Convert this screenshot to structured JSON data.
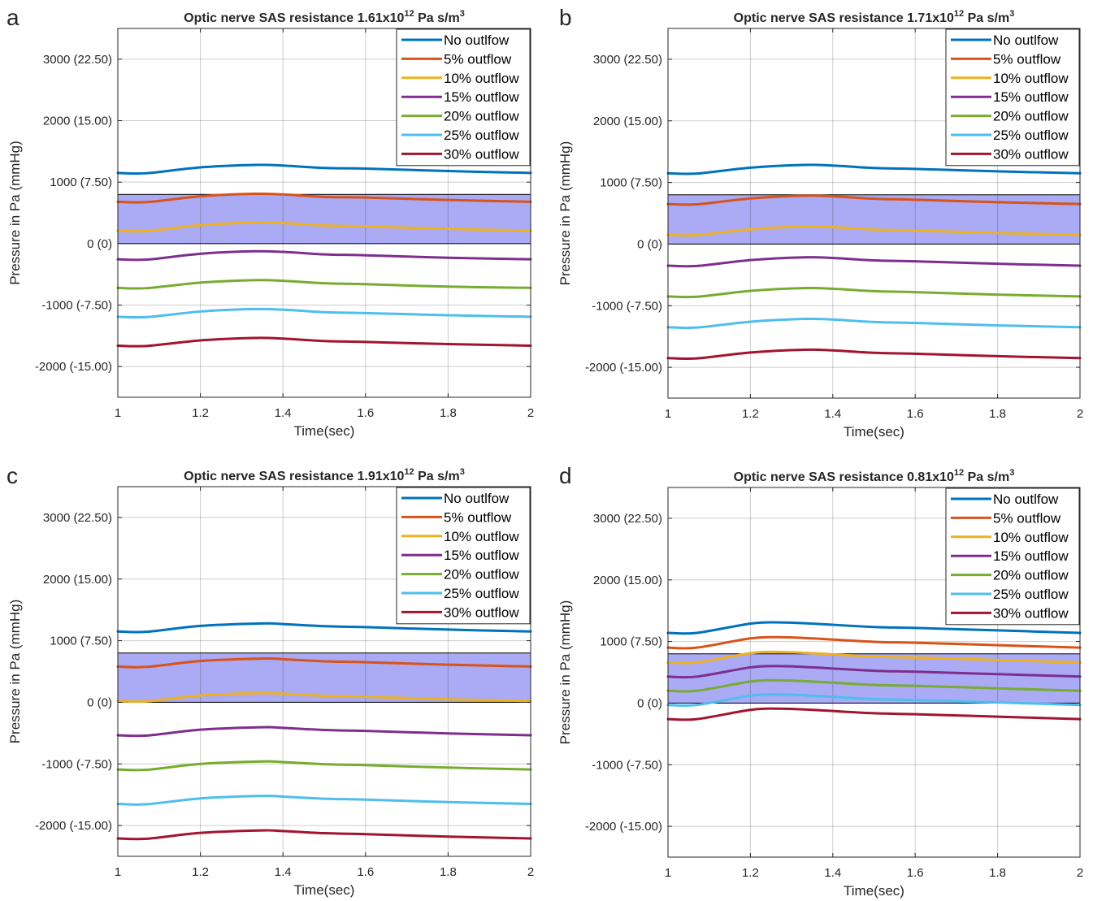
{
  "chart_data": [
    {
      "type": "line",
      "panel_label": "a",
      "title": {
        "prefix": "Optic nerve SAS resistance 1.61x10",
        "exponent": "12",
        "unit": " Pa s/m",
        "unit_exponent": "3"
      },
      "xlabel": "Time(sec)",
      "ylabel": "Pressure in Pa (mmHg)",
      "xlim": [
        1,
        2
      ],
      "ylim": [
        -2500,
        3500
      ],
      "xticks": [
        1,
        1.2,
        1.4,
        1.6,
        1.8,
        2
      ],
      "xtick_labels": [
        "1",
        "1.2",
        "1.4",
        "1.6",
        "1.8",
        "2"
      ],
      "yticks": [
        -2000,
        -1000,
        0,
        1000,
        2000,
        3000
      ],
      "ytick_labels": [
        "-2000 (-15.00)",
        "-1000 (-7.50)",
        "0 (0)",
        "1000 (7.50)",
        "2000 (15.00)",
        "3000 (22.50)"
      ],
      "grid": true,
      "legend_position": "top-right",
      "shaded_band": {
        "y_from": 0,
        "y_to": 800,
        "color": "#aaaaf5"
      },
      "series": [
        {
          "name": "No outlfow",
          "color": "#0072bd",
          "x": [
            1,
            1.07,
            1.2,
            1.33,
            1.4,
            1.5,
            1.6,
            1.8,
            2
          ],
          "values": [
            1150,
            1145,
            1240,
            1280,
            1270,
            1230,
            1220,
            1180,
            1150
          ]
        },
        {
          "name": "5% outflow",
          "color": "#d95319",
          "x": [
            1,
            1.07,
            1.2,
            1.33,
            1.4,
            1.5,
            1.6,
            1.8,
            2
          ],
          "values": [
            680,
            675,
            770,
            810,
            800,
            760,
            750,
            710,
            680
          ]
        },
        {
          "name": "10% outflow",
          "color": "#edb120",
          "x": [
            1,
            1.07,
            1.2,
            1.33,
            1.4,
            1.5,
            1.6,
            1.8,
            2
          ],
          "values": [
            210,
            205,
            300,
            345,
            335,
            295,
            280,
            240,
            210
          ]
        },
        {
          "name": "15% outflow",
          "color": "#7e2f8e",
          "x": [
            1,
            1.07,
            1.2,
            1.33,
            1.4,
            1.5,
            1.6,
            1.8,
            2
          ],
          "values": [
            -255,
            -260,
            -165,
            -125,
            -135,
            -175,
            -190,
            -230,
            -255
          ]
        },
        {
          "name": "20% outflow",
          "color": "#77ac30",
          "x": [
            1,
            1.07,
            1.2,
            1.33,
            1.4,
            1.5,
            1.6,
            1.8,
            2
          ],
          "values": [
            -720,
            -725,
            -635,
            -595,
            -605,
            -645,
            -660,
            -700,
            -720
          ]
        },
        {
          "name": "25% outflow",
          "color": "#4dbeee",
          "x": [
            1,
            1.07,
            1.2,
            1.33,
            1.4,
            1.5,
            1.6,
            1.8,
            2
          ],
          "values": [
            -1190,
            -1195,
            -1105,
            -1065,
            -1075,
            -1115,
            -1130,
            -1165,
            -1190
          ]
        },
        {
          "name": "30% outflow",
          "color": "#a2142f",
          "x": [
            1,
            1.07,
            1.2,
            1.33,
            1.4,
            1.5,
            1.6,
            1.8,
            2
          ],
          "values": [
            -1660,
            -1665,
            -1575,
            -1535,
            -1545,
            -1585,
            -1600,
            -1635,
            -1660
          ]
        }
      ]
    },
    {
      "type": "line",
      "panel_label": "b",
      "title": {
        "prefix": "Optic nerve SAS resistance 1.71x10",
        "exponent": "12",
        "unit": " Pa s/m",
        "unit_exponent": "3"
      },
      "xlabel": "Time(sec)",
      "ylabel": "Pressure in Pa (mmHg)",
      "xlim": [
        1,
        2
      ],
      "ylim": [
        -2500,
        3500
      ],
      "xticks": [
        1,
        1.2,
        1.4,
        1.6,
        1.8,
        2
      ],
      "xtick_labels": [
        "1",
        "1.2",
        "1.4",
        "1.6",
        "1.8",
        "2"
      ],
      "yticks": [
        -2000,
        -1000,
        0,
        1000,
        2000,
        3000
      ],
      "ytick_labels": [
        "-2000 (-15.00)",
        "-1000 (-7.50)",
        "0 (0)",
        "1000 (7.50)",
        "2000 (15.00)",
        "3000 (22.50)"
      ],
      "grid": true,
      "legend_position": "top-right",
      "shaded_band": {
        "y_from": 0,
        "y_to": 800,
        "color": "#aaaaf5"
      },
      "series": [
        {
          "name": "No outlfow",
          "color": "#0072bd",
          "x": [
            1,
            1.07,
            1.2,
            1.33,
            1.4,
            1.5,
            1.6,
            1.8,
            2
          ],
          "values": [
            1150,
            1145,
            1240,
            1285,
            1275,
            1235,
            1220,
            1180,
            1150
          ]
        },
        {
          "name": "5% outflow",
          "color": "#d95319",
          "x": [
            1,
            1.07,
            1.2,
            1.33,
            1.4,
            1.5,
            1.6,
            1.8,
            2
          ],
          "values": [
            650,
            645,
            740,
            785,
            775,
            735,
            720,
            680,
            650
          ]
        },
        {
          "name": "10% outflow",
          "color": "#edb120",
          "x": [
            1,
            1.07,
            1.2,
            1.33,
            1.4,
            1.5,
            1.6,
            1.8,
            2
          ],
          "values": [
            150,
            145,
            240,
            285,
            275,
            235,
            220,
            180,
            150
          ]
        },
        {
          "name": "15% outflow",
          "color": "#7e2f8e",
          "x": [
            1,
            1.07,
            1.2,
            1.33,
            1.4,
            1.5,
            1.6,
            1.8,
            2
          ],
          "values": [
            -350,
            -355,
            -260,
            -215,
            -225,
            -265,
            -280,
            -320,
            -350
          ]
        },
        {
          "name": "20% outflow",
          "color": "#77ac30",
          "x": [
            1,
            1.07,
            1.2,
            1.33,
            1.4,
            1.5,
            1.6,
            1.8,
            2
          ],
          "values": [
            -850,
            -855,
            -760,
            -715,
            -725,
            -765,
            -780,
            -820,
            -850
          ]
        },
        {
          "name": "25% outflow",
          "color": "#4dbeee",
          "x": [
            1,
            1.07,
            1.2,
            1.33,
            1.4,
            1.5,
            1.6,
            1.8,
            2
          ],
          "values": [
            -1350,
            -1355,
            -1260,
            -1215,
            -1225,
            -1265,
            -1280,
            -1320,
            -1350
          ]
        },
        {
          "name": "30% outflow",
          "color": "#a2142f",
          "x": [
            1,
            1.07,
            1.2,
            1.33,
            1.4,
            1.5,
            1.6,
            1.8,
            2
          ],
          "values": [
            -1850,
            -1855,
            -1760,
            -1715,
            -1725,
            -1765,
            -1780,
            -1820,
            -1850
          ]
        }
      ]
    },
    {
      "type": "line",
      "panel_label": "c",
      "title": {
        "prefix": "Optic nerve SAS resistance 1.91x10",
        "exponent": "12",
        "unit": " Pa s/m",
        "unit_exponent": "3"
      },
      "xlabel": "Time(sec)",
      "ylabel": "Pressure in Pa (mmHg)",
      "xlim": [
        1,
        2
      ],
      "ylim": [
        -2500,
        3500
      ],
      "xticks": [
        1,
        1.2,
        1.4,
        1.6,
        1.8,
        2
      ],
      "xtick_labels": [
        "1",
        "1.2",
        "1.4",
        "1.6",
        "1.8",
        "2"
      ],
      "yticks": [
        -2000,
        -1000,
        0,
        1000,
        2000,
        3000
      ],
      "ytick_labels": [
        "-2000 (-15.00)",
        "-1000 (-7.50)",
        "0 (0)",
        "1000 (7.50)",
        "2000 (15.00)",
        "3000 (22.50)"
      ],
      "grid": true,
      "legend_position": "top-right",
      "shaded_band": {
        "y_from": 0,
        "y_to": 800,
        "color": "#aaaaf5"
      },
      "series": [
        {
          "name": "No outlfow",
          "color": "#0072bd",
          "x": [
            1,
            1.07,
            1.2,
            1.35,
            1.4,
            1.5,
            1.6,
            1.8,
            2
          ],
          "values": [
            1150,
            1145,
            1240,
            1280,
            1270,
            1235,
            1220,
            1180,
            1150
          ]
        },
        {
          "name": "5% outflow",
          "color": "#d95319",
          "x": [
            1,
            1.07,
            1.2,
            1.35,
            1.4,
            1.5,
            1.6,
            1.8,
            2
          ],
          "values": [
            580,
            575,
            670,
            710,
            700,
            665,
            650,
            610,
            580
          ]
        },
        {
          "name": "10% outflow",
          "color": "#edb120",
          "x": [
            1,
            1.07,
            1.2,
            1.35,
            1.4,
            1.5,
            1.6,
            1.8,
            2
          ],
          "values": [
            20,
            15,
            110,
            150,
            140,
            105,
            90,
            50,
            20
          ]
        },
        {
          "name": "15% outflow",
          "color": "#7e2f8e",
          "x": [
            1,
            1.07,
            1.2,
            1.35,
            1.4,
            1.5,
            1.6,
            1.8,
            2
          ],
          "values": [
            -535,
            -540,
            -445,
            -405,
            -415,
            -450,
            -465,
            -505,
            -535
          ]
        },
        {
          "name": "20% outflow",
          "color": "#77ac30",
          "x": [
            1,
            1.07,
            1.2,
            1.35,
            1.4,
            1.5,
            1.6,
            1.8,
            2
          ],
          "values": [
            -1090,
            -1095,
            -1000,
            -960,
            -970,
            -1005,
            -1020,
            -1060,
            -1090
          ]
        },
        {
          "name": "25% outflow",
          "color": "#4dbeee",
          "x": [
            1,
            1.07,
            1.2,
            1.35,
            1.4,
            1.5,
            1.6,
            1.8,
            2
          ],
          "values": [
            -1650,
            -1655,
            -1560,
            -1520,
            -1530,
            -1565,
            -1580,
            -1620,
            -1650
          ]
        },
        {
          "name": "30% outflow",
          "color": "#a2142f",
          "x": [
            1,
            1.07,
            1.2,
            1.35,
            1.4,
            1.5,
            1.6,
            1.8,
            2
          ],
          "values": [
            -2210,
            -2215,
            -2120,
            -2080,
            -2090,
            -2125,
            -2140,
            -2180,
            -2210
          ]
        }
      ]
    },
    {
      "type": "line",
      "panel_label": "d",
      "title": {
        "prefix": "Optic nerve SAS resistance 0.81x10",
        "exponent": "12",
        "unit": " Pa s/m",
        "unit_exponent": "3"
      },
      "xlabel": "Time(sec)",
      "ylabel": "Pressure in Pa (mmHg)",
      "xlim": [
        1,
        2
      ],
      "ylim": [
        -2500,
        3500
      ],
      "xticks": [
        1,
        1.2,
        1.4,
        1.6,
        1.8,
        2
      ],
      "xtick_labels": [
        "1",
        "1.2",
        "1.4",
        "1.6",
        "1.8",
        "2"
      ],
      "yticks": [
        -2000,
        -1000,
        0,
        1000,
        2000,
        3000
      ],
      "ytick_labels": [
        "-2000 (-15.00)",
        "-1000 (-7.50)",
        "0 (0)",
        "1000 (7.50)",
        "2000 (15.00)",
        "3000 (22.50)"
      ],
      "grid": true,
      "legend_position": "top-right",
      "shaded_band": {
        "y_from": 0,
        "y_to": 800,
        "color": "#aaaaf5"
      },
      "series": [
        {
          "name": "No outlfow",
          "color": "#0072bd",
          "x": [
            1,
            1.07,
            1.2,
            1.27,
            1.35,
            1.5,
            1.6,
            1.8,
            2
          ],
          "values": [
            1140,
            1140,
            1290,
            1310,
            1290,
            1235,
            1220,
            1180,
            1140
          ]
        },
        {
          "name": "5% outflow",
          "color": "#d95319",
          "x": [
            1,
            1.07,
            1.2,
            1.27,
            1.35,
            1.5,
            1.6,
            1.8,
            2
          ],
          "values": [
            900,
            900,
            1050,
            1070,
            1050,
            995,
            980,
            940,
            900
          ]
        },
        {
          "name": "10% outflow",
          "color": "#edb120",
          "x": [
            1,
            1.07,
            1.2,
            1.27,
            1.35,
            1.5,
            1.6,
            1.8,
            2
          ],
          "values": [
            660,
            660,
            810,
            830,
            810,
            755,
            740,
            700,
            660
          ]
        },
        {
          "name": "15% outflow",
          "color": "#7e2f8e",
          "x": [
            1,
            1.07,
            1.2,
            1.27,
            1.35,
            1.5,
            1.6,
            1.8,
            2
          ],
          "values": [
            430,
            430,
            580,
            600,
            580,
            525,
            510,
            470,
            430
          ]
        },
        {
          "name": "20% outflow",
          "color": "#77ac30",
          "x": [
            1,
            1.07,
            1.2,
            1.27,
            1.35,
            1.5,
            1.6,
            1.8,
            2
          ],
          "values": [
            200,
            200,
            350,
            370,
            350,
            295,
            280,
            240,
            200
          ]
        },
        {
          "name": "25% outflow",
          "color": "#4dbeee",
          "x": [
            1,
            1.07,
            1.2,
            1.27,
            1.35,
            1.5,
            1.6,
            1.8,
            2
          ],
          "values": [
            -30,
            -30,
            120,
            140,
            120,
            65,
            50,
            10,
            -30
          ]
        },
        {
          "name": "30% outflow",
          "color": "#a2142f",
          "x": [
            1,
            1.07,
            1.2,
            1.27,
            1.35,
            1.5,
            1.6,
            1.8,
            2
          ],
          "values": [
            -260,
            -260,
            -110,
            -90,
            -110,
            -165,
            -180,
            -220,
            -260
          ]
        }
      ]
    }
  ]
}
